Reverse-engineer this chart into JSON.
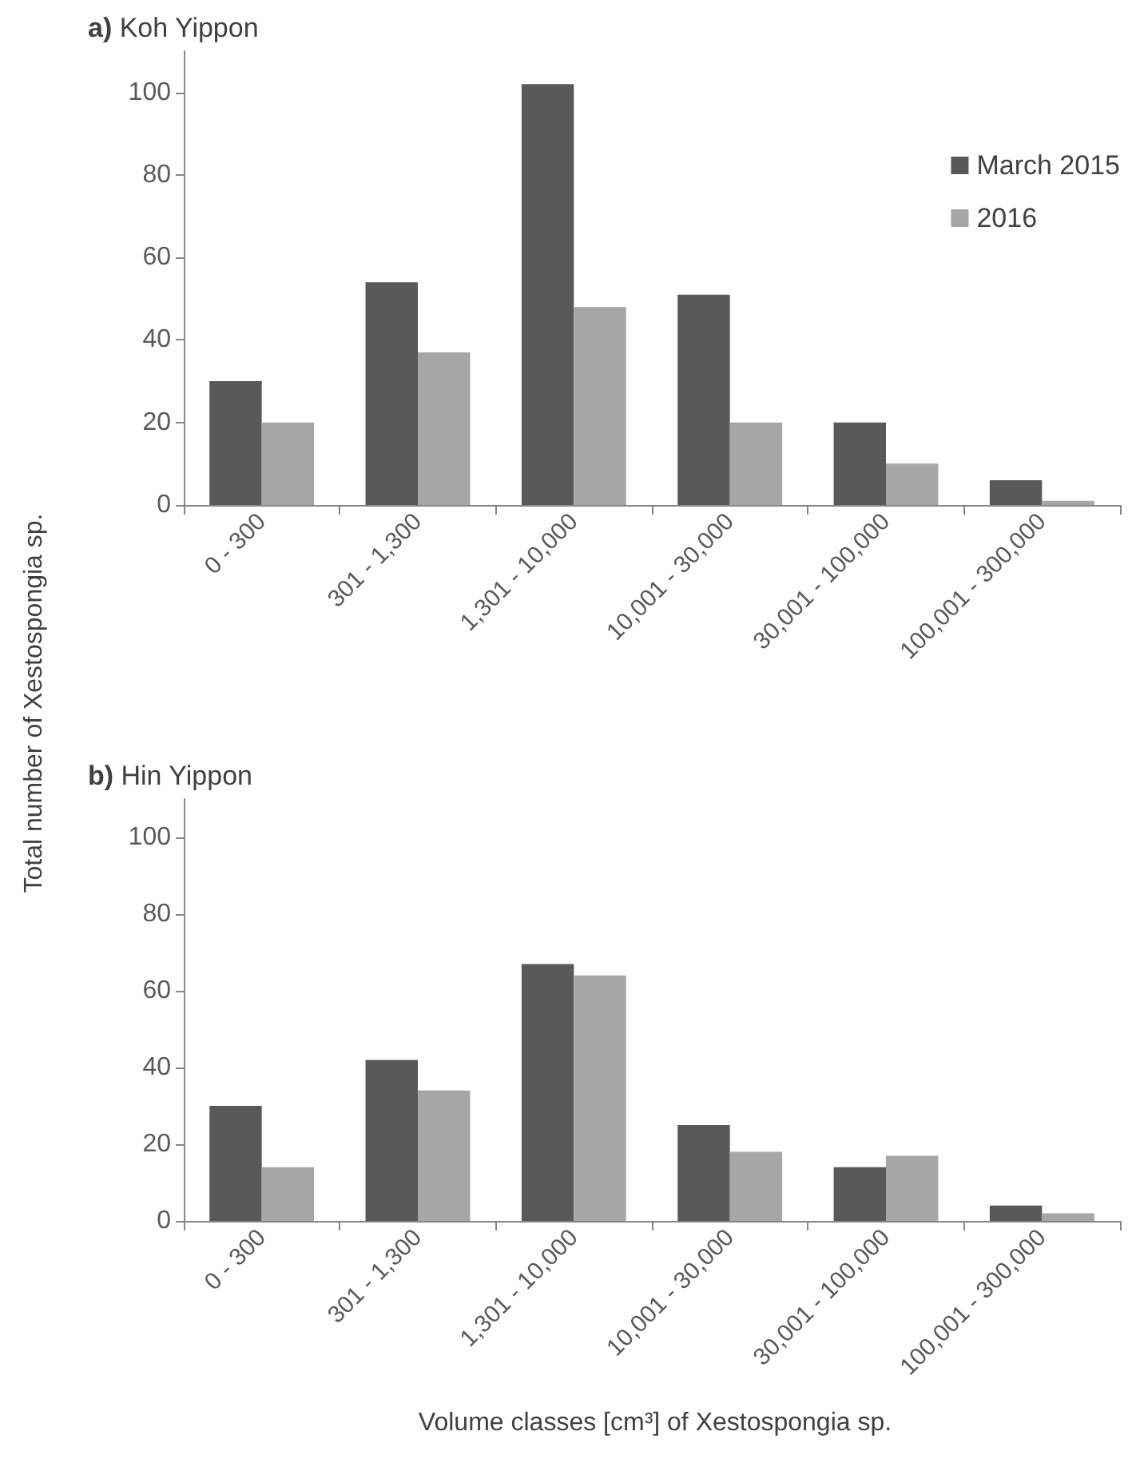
{
  "chart_data": [
    {
      "type": "bar",
      "title": "a) Koh Yippon",
      "ylabel": "Total number of Xestospongia sp.",
      "categories": [
        "0 - 300",
        "301 - 1,300",
        "1,301 - 10,000",
        "10,001 - 30,000",
        "30,001 - 100,000",
        "100,001 - 300,000"
      ],
      "series": [
        {
          "name": "March 2015",
          "color": "#595959",
          "values": [
            30,
            54,
            102,
            51,
            20,
            6
          ]
        },
        {
          "name": "2016",
          "color": "#a6a6a6",
          "values": [
            20,
            37,
            48,
            20,
            10,
            1
          ]
        }
      ],
      "ylim": [
        0,
        110
      ],
      "yticks": [
        0,
        20,
        40,
        60,
        80,
        100
      ],
      "grid": false,
      "legend": "top right"
    },
    {
      "type": "bar",
      "title": "b) Hin Yippon",
      "xlabel": "Volume classes [cm³] of Xestospongia sp.",
      "categories": [
        "0 - 300",
        "301 - 1,300",
        "1,301 - 10,000",
        "10,001 - 30,000",
        "30,001 - 100,000",
        "100,001 - 300,000"
      ],
      "series": [
        {
          "color": "#595959",
          "values": [
            30,
            42,
            67,
            25,
            14,
            4
          ]
        },
        {
          "color": "#a6a6a6",
          "values": [
            14,
            34,
            64,
            18,
            17,
            2
          ]
        }
      ],
      "ylim": [
        0,
        110
      ],
      "yticks": [
        0,
        20,
        40,
        60,
        80,
        100
      ],
      "grid": false,
      "legend": false
    }
  ]
}
